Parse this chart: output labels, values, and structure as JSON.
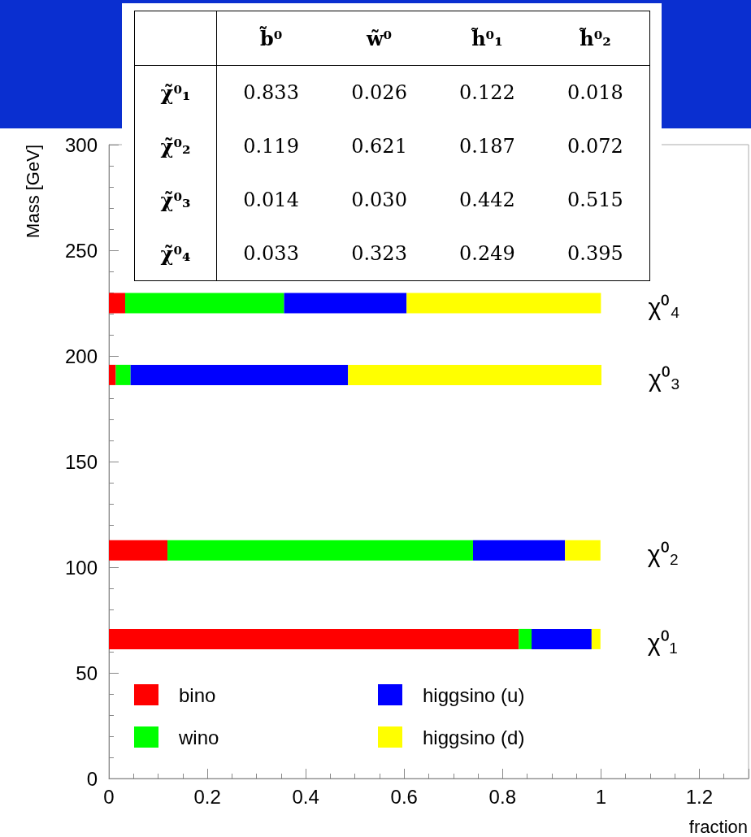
{
  "chart_data": [
    {
      "type": "bar",
      "orientation": "horizontal",
      "stacked": true,
      "xlabel": "fraction",
      "ylabel": "Mass [GeV]",
      "x": [
        66,
        108,
        191,
        225
      ],
      "series": [
        {
          "name": "bino",
          "color": "#ff0000",
          "values": [
            0.833,
            0.119,
            0.014,
            0.033
          ]
        },
        {
          "name": "wino",
          "color": "#00ff00",
          "values": [
            0.026,
            0.621,
            0.03,
            0.323
          ]
        },
        {
          "name": "higgsino (u)",
          "color": "#0000ff",
          "values": [
            0.122,
            0.187,
            0.442,
            0.249
          ]
        },
        {
          "name": "higgsino (d)",
          "color": "#ffff00",
          "values": [
            0.018,
            0.072,
            0.515,
            0.395
          ]
        }
      ],
      "xlim": [
        0,
        1.3
      ],
      "xticks": [
        0,
        0.2,
        0.4,
        0.6,
        0.8,
        1,
        1.2
      ],
      "ylim": [
        0,
        300
      ],
      "yticks": [
        0,
        50,
        100,
        150,
        200,
        250,
        300
      ],
      "legend": "bottom left",
      "grid": false,
      "annotations": [
        "χ⁰₁",
        "χ⁰₂",
        "χ⁰₃",
        "χ⁰₄"
      ]
    },
    {
      "type": "other",
      "categories": [
        "b̃⁰",
        "w̃⁰",
        "h̃⁰₁",
        "h̃⁰₂"
      ],
      "y_categories": [
        "χ̃⁰₁",
        "χ̃⁰₂",
        "χ̃⁰₃",
        "χ̃⁰₄"
      ],
      "annotations": [
        "0.833",
        "0.026",
        "0.122",
        "0.018",
        "0.119",
        "0.621",
        "0.187",
        "0.072",
        "0.014",
        "0.030",
        "0.442",
        "0.515",
        "0.033",
        "0.323",
        "0.249",
        "0.395"
      ]
    }
  ]
}
